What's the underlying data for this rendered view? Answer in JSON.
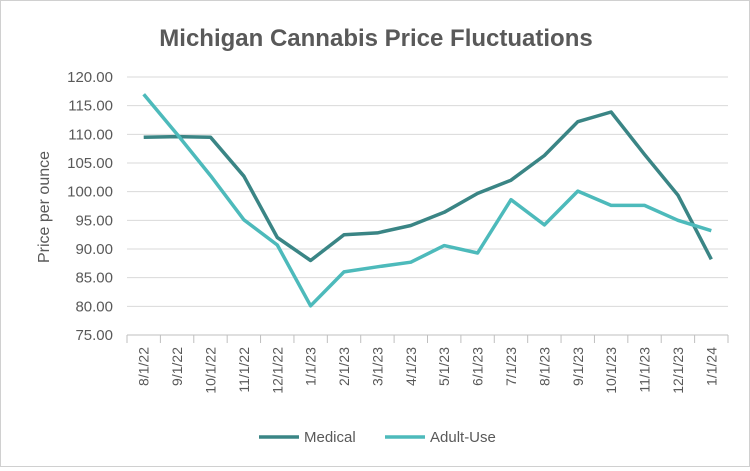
{
  "chart_data": {
    "type": "line",
    "title": "Michigan Cannabis Price Fluctuations",
    "xlabel": "",
    "ylabel": "Price per ounce",
    "ylim": [
      75,
      120
    ],
    "yticks": [
      "75.00",
      "80.00",
      "85.00",
      "90.00",
      "95.00",
      "100.00",
      "105.00",
      "110.00",
      "115.00",
      "120.00"
    ],
    "grid": true,
    "legend": "bottom",
    "categories": [
      "8/1/22",
      "9/1/22",
      "10/1/22",
      "11/1/22",
      "12/1/22",
      "1/1/23",
      "2/1/23",
      "3/1/23",
      "4/1/23",
      "5/1/23",
      "6/1/23",
      "7/1/23",
      "8/1/23",
      "9/1/23",
      "10/1/23",
      "11/1/23",
      "12/1/23",
      "1/1/24"
    ],
    "series": [
      {
        "name": "Medical",
        "color": "#3a8585",
        "values": [
          109.5,
          109.6,
          109.5,
          102.7,
          92.0,
          88.0,
          92.5,
          92.8,
          94.1,
          96.4,
          99.7,
          102.0,
          106.3,
          112.2,
          113.9,
          106.5,
          99.4,
          88.2
        ]
      },
      {
        "name": "Adult-Use",
        "color": "#4dbabb",
        "values": [
          117.0,
          110.0,
          102.8,
          95.1,
          90.7,
          80.1,
          86.0,
          86.9,
          87.7,
          90.6,
          89.3,
          98.6,
          94.2,
          100.1,
          97.6,
          97.6,
          95.0,
          93.2
        ]
      }
    ]
  }
}
